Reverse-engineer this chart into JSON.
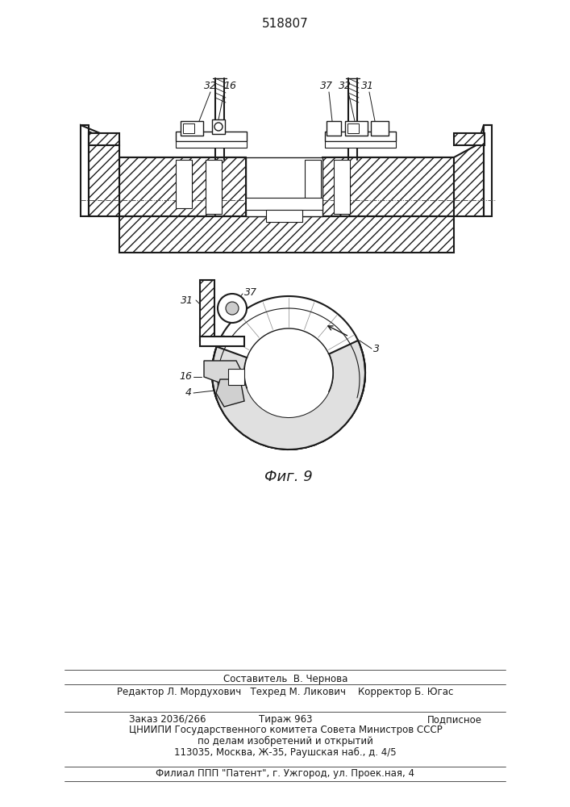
{
  "patent_number": "518807",
  "fig_label": "Фиг. 9",
  "bg_color": "#ffffff",
  "line_color": "#1a1a1a",
  "footer_lines": [
    "Составитель  В. Чернова",
    "Редактор Л. Мордухович   Техред М. Ликович    Корректор Б. Югас",
    "Заказ 2036/266",
    "Тираж 963",
    "Подписное",
    "ЦНИИПИ Государственного комитета Совета Министров СССР",
    "по делам изобретений и открытий",
    "113035, Москва, Ж-35, Раушская наб., д. 4/5",
    "Филиал ППП \"Патент\", г. Ужгород, ул. Проек.ная, 4"
  ]
}
